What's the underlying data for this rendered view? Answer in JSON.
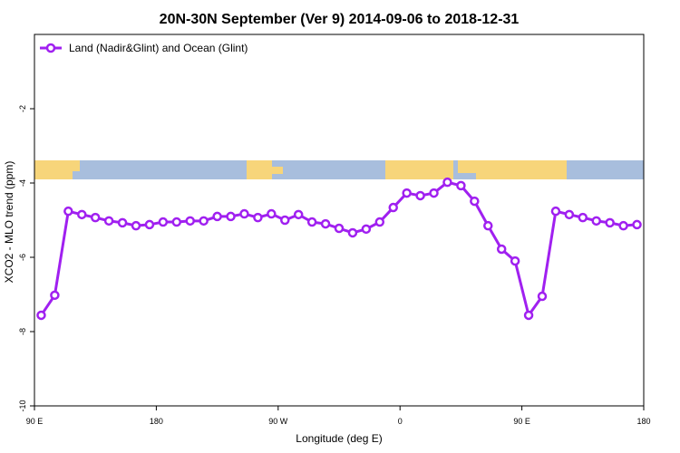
{
  "chart_data": {
    "type": "line",
    "title": "20N-30N September (Ver 9)   2014-09-06 to 2018-12-31",
    "x_label": "Longitude (deg E)",
    "y_label": "XCO2 - MLO trend (ppm)",
    "xlim": [
      90,
      540
    ],
    "xticks": [
      {
        "value": 90,
        "label": "90 E"
      },
      180,
      {
        "value": 270,
        "label": "90 W"
      },
      {
        "value": 360,
        "label": "0"
      },
      {
        "value": 450,
        "label": "90 E"
      },
      {
        "value": 540,
        "label": "180"
      }
    ],
    "ylim": [
      -10,
      0
    ],
    "yticks": [
      -10,
      -8,
      -6,
      -4,
      -2
    ],
    "legend": "top-left",
    "series": [
      {
        "name": "Land (Nadir&Glint) and Ocean (Glint)",
        "color": "#a020f0",
        "x": [
          95,
          105,
          115,
          125,
          135,
          145,
          155,
          165,
          175,
          185,
          195,
          205,
          215,
          225,
          235,
          245,
          255,
          265,
          275,
          285,
          295,
          305,
          315,
          325,
          335,
          345,
          355,
          365,
          375,
          385,
          395,
          405,
          415,
          425,
          435,
          445,
          455,
          465,
          475,
          485,
          495,
          505,
          515,
          525,
          535
        ],
        "values": [
          -7.56,
          -7.02,
          -4.76,
          -4.85,
          -4.93,
          -5.02,
          -5.07,
          -5.15,
          -5.12,
          -5.05,
          -5.05,
          -5.02,
          -5.02,
          -4.9,
          -4.9,
          -4.83,
          -4.93,
          -4.83,
          -5.0,
          -4.85,
          -5.05,
          -5.1,
          -5.22,
          -5.34,
          -5.24,
          -5.05,
          -4.66,
          -4.27,
          -4.34,
          -4.27,
          -3.98,
          -4.07,
          -4.49,
          -5.15,
          -5.78,
          -6.1,
          -7.56,
          -7.05,
          -4.76,
          -4.85,
          -4.93,
          -5.02,
          -5.07,
          -5.15,
          -5.12
        ]
      }
    ]
  }
}
